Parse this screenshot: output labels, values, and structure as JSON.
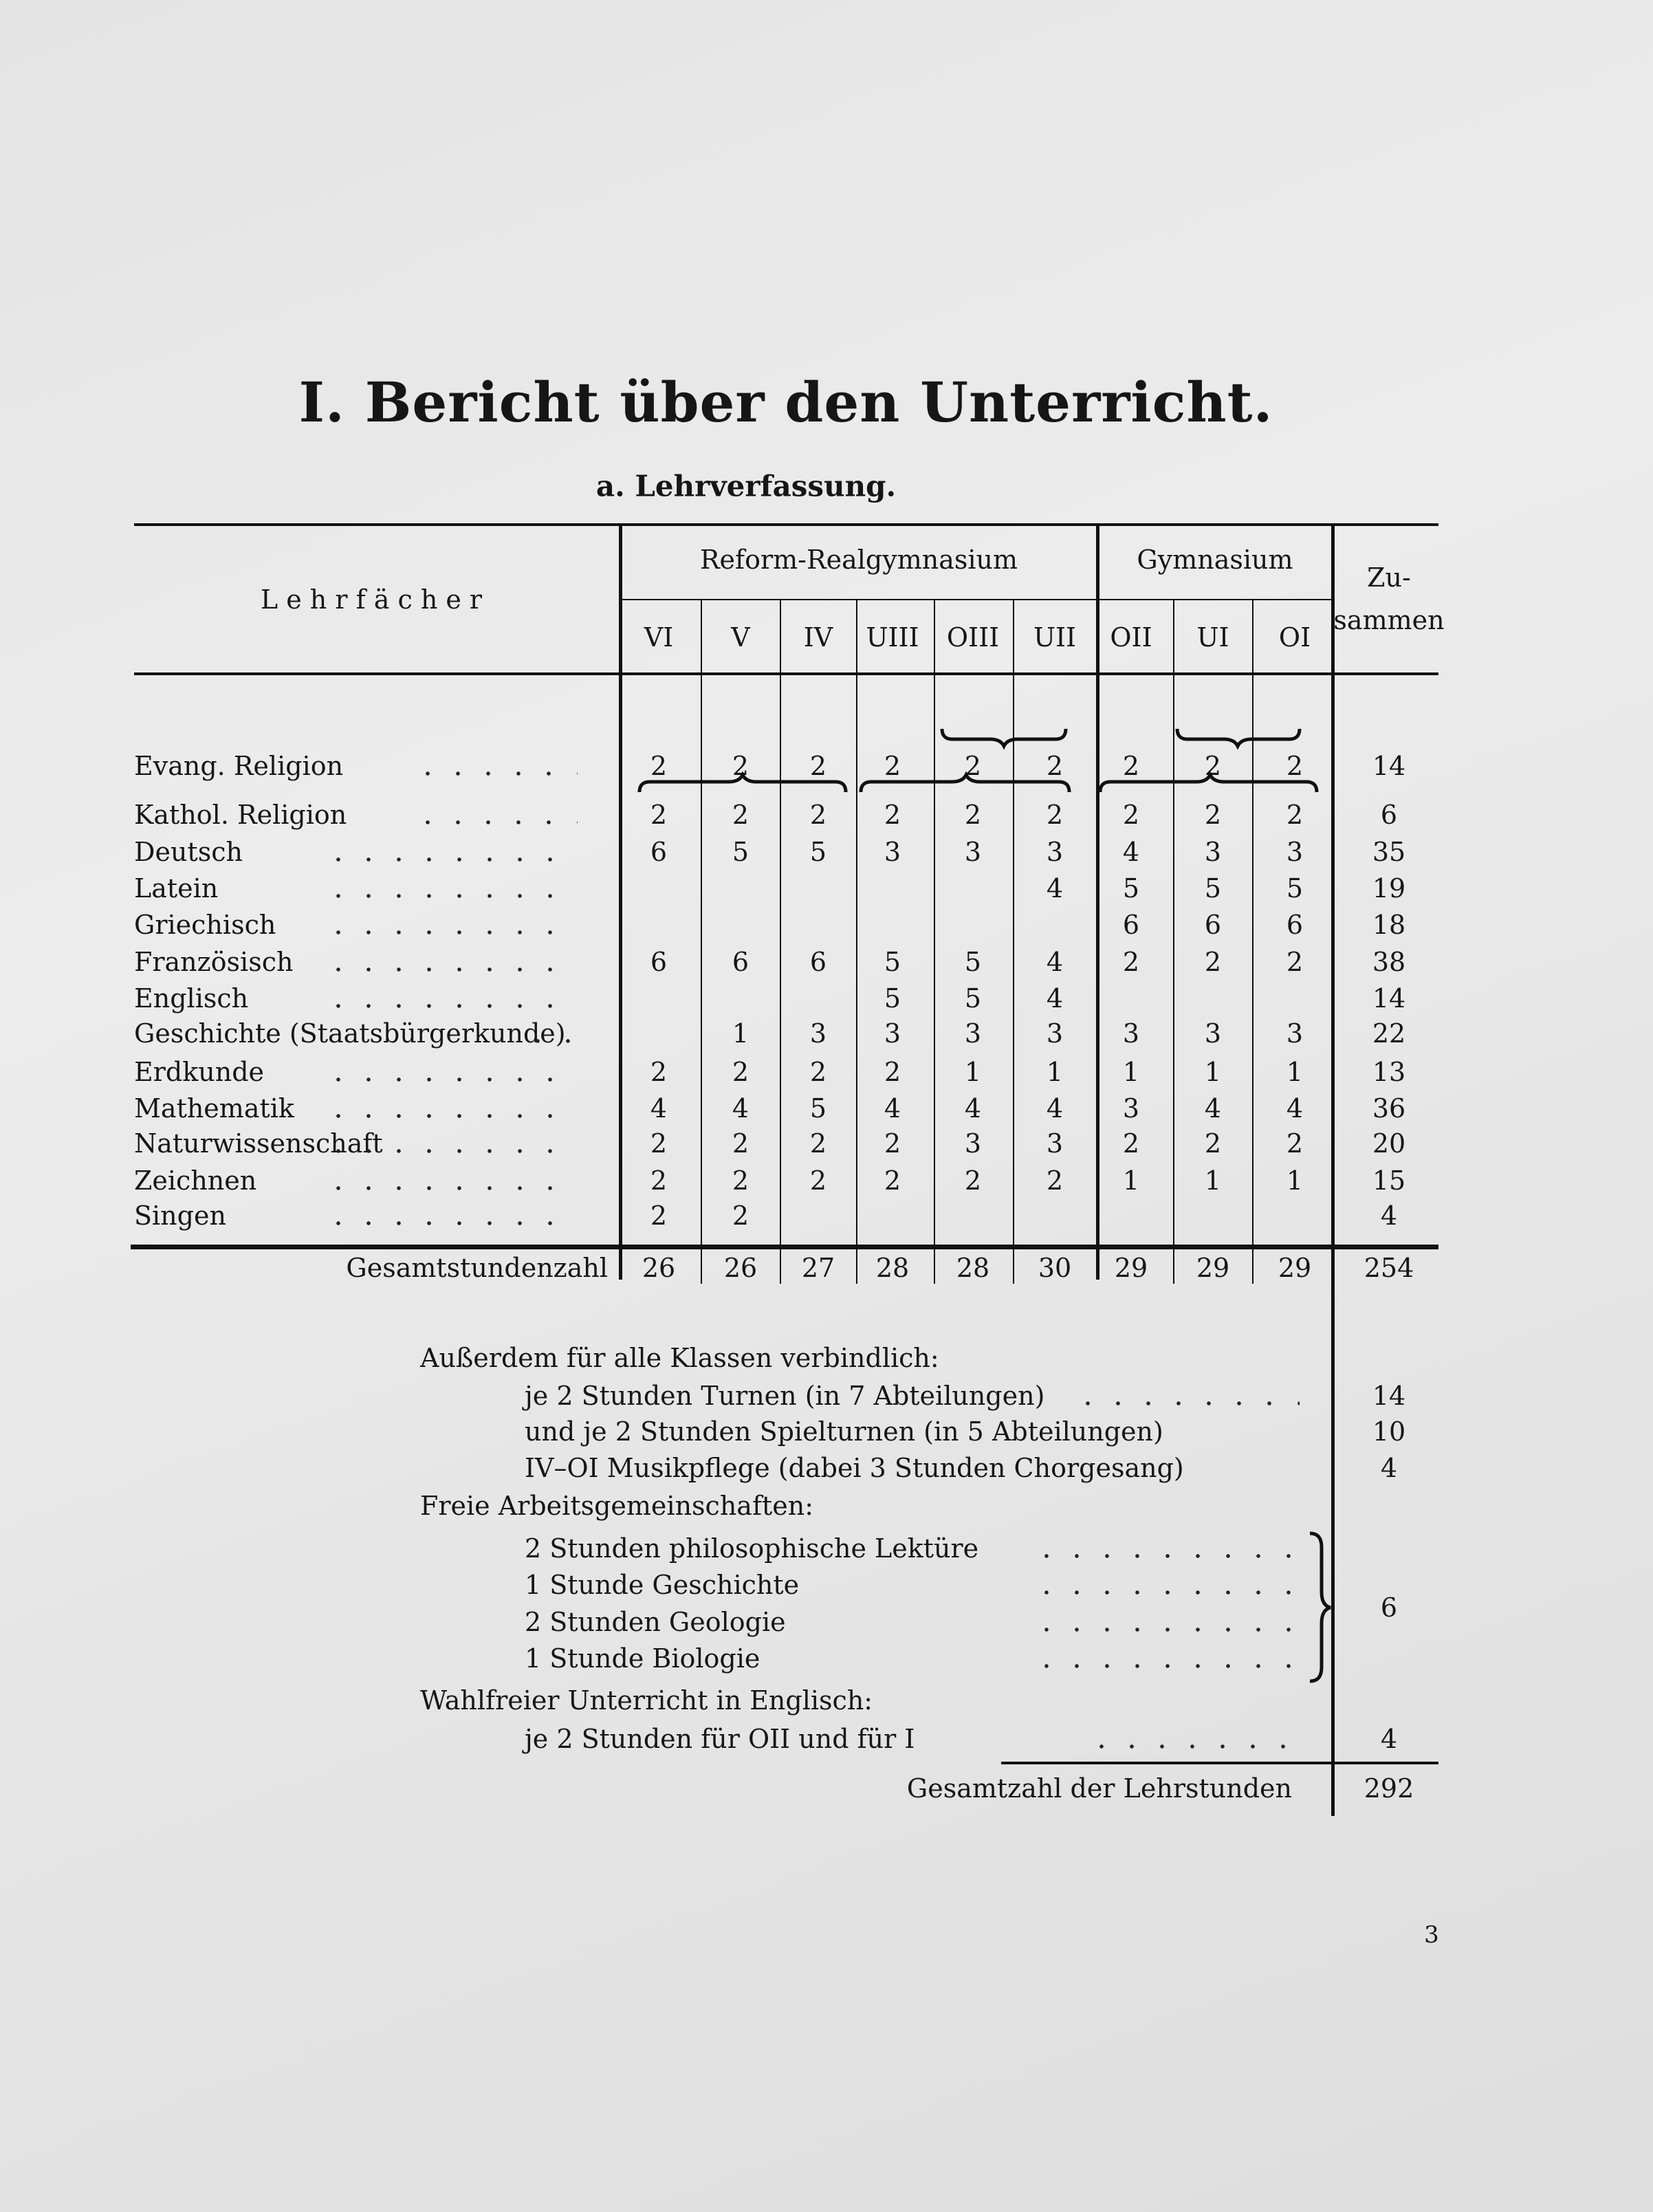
{
  "title": "I. Bericht über den Unterricht.",
  "subtitle": "a. Lehrverfassung.",
  "table": {
    "subject_header": "L e h r f ä c h e r",
    "groups": [
      "Reform-Realgymnasium",
      "Gymnasium"
    ],
    "classes": [
      "VI",
      "V",
      "IV",
      "UIII",
      "OIII",
      "UII",
      "OII",
      "UI",
      "OI"
    ],
    "total_header": [
      "Zu-",
      "sammen"
    ],
    "rows": [
      {
        "subject": "Evang. Religion",
        "hours": [
          "2",
          "2",
          "2",
          "2",
          "2",
          "2",
          "2",
          "2",
          "2"
        ],
        "total": "14"
      },
      {
        "subject": "Kathol. Religion",
        "hours": [
          "2",
          "2",
          "2",
          "2",
          "2",
          "2",
          "2",
          "2",
          "2"
        ],
        "total": "6"
      },
      {
        "subject": "Deutsch",
        "hours": [
          "6",
          "5",
          "5",
          "3",
          "3",
          "3",
          "4",
          "3",
          "3"
        ],
        "total": "35"
      },
      {
        "subject": "Latein",
        "hours": [
          "",
          "",
          "",
          "",
          "",
          "4",
          "5",
          "5",
          "5"
        ],
        "total": "19"
      },
      {
        "subject": "Griechisch",
        "hours": [
          "",
          "",
          "",
          "",
          "",
          "",
          "6",
          "6",
          "6"
        ],
        "total": "18"
      },
      {
        "subject": "Französisch",
        "hours": [
          "6",
          "6",
          "6",
          "5",
          "5",
          "4",
          "2",
          "2",
          "2"
        ],
        "total": "38"
      },
      {
        "subject": "Englisch",
        "hours": [
          "",
          "",
          "",
          "5",
          "5",
          "4",
          "",
          "",
          ""
        ],
        "total": "14"
      },
      {
        "subject": "Geschichte (Staatsbürgerkunde)",
        "hours": [
          "",
          "1",
          "3",
          "3",
          "3",
          "3",
          "3",
          "3",
          "3"
        ],
        "total": "22"
      },
      {
        "subject": "Erdkunde",
        "hours": [
          "2",
          "2",
          "2",
          "2",
          "1",
          "1",
          "1",
          "1",
          "1"
        ],
        "total": "13"
      },
      {
        "subject": "Mathematik",
        "hours": [
          "4",
          "4",
          "5",
          "4",
          "4",
          "4",
          "3",
          "4",
          "4"
        ],
        "total": "36"
      },
      {
        "subject": "Naturwissenschaft",
        "hours": [
          "2",
          "2",
          "2",
          "2",
          "3",
          "3",
          "2",
          "2",
          "2"
        ],
        "total": "20"
      },
      {
        "subject": "Zeichnen",
        "hours": [
          "2",
          "2",
          "2",
          "2",
          "2",
          "2",
          "1",
          "1",
          "1"
        ],
        "total": "15"
      },
      {
        "subject": "Singen",
        "hours": [
          "2",
          "2",
          "",
          "",
          "",
          "",
          "",
          "",
          ""
        ],
        "total": "4"
      }
    ],
    "totals_label": "Gesamtstundenzahl",
    "totals": [
      "26",
      "26",
      "27",
      "28",
      "28",
      "30",
      "29",
      "29",
      "29"
    ],
    "totals_sum": "254"
  },
  "extra": {
    "mandatory_heading": "Außerdem für alle Klassen verbindlich:",
    "mandatory": [
      {
        "text": "je 2 Stunden Turnen (in 7 Abteilungen)",
        "value": "14"
      },
      {
        "text": "und je 2 Stunden Spielturnen (in 5 Abteilungen)",
        "value": "10"
      },
      {
        "text": "IV–OI Musikpflege (dabei 3 Stunden Chorgesang)",
        "value": "4"
      }
    ],
    "free_heading": "Freie Arbeitsgemeinschaften:",
    "free": [
      "2 Stunden philosophische Lektüre",
      "1 Stunde Geschichte",
      "2 Stunden Geologie",
      "1 Stunde Biologie"
    ],
    "free_value": "6",
    "elective_heading": "Wahlfreier Unterricht in Englisch:",
    "elective": {
      "text": "je 2 Stunden für OII und für I",
      "value": "4"
    },
    "grand_total_label": "Gesamtzahl der Lehrstunden",
    "grand_total": "292"
  },
  "page_number": "3"
}
